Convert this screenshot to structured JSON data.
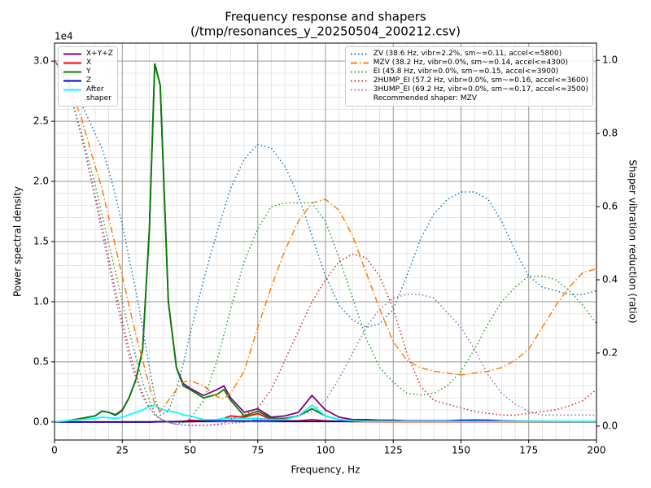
{
  "chart_data": {
    "type": "line",
    "title": "Frequency response and shapers",
    "subtitle": "(/tmp/resonances_y_20250504_200212.csv)",
    "x_label": "Frequency, Hz",
    "y_label": "Power spectral density",
    "y2_label": "Shaper vibration reduction (ratio)",
    "y_offset_label": "1e4",
    "recommendation": "Recommended shaper: MZV",
    "grid": true,
    "minor_grid": true,
    "legend_loc": "upper left",
    "y2_legend_loc": "upper right",
    "xlim": [
      0,
      200
    ],
    "xticks": [
      0,
      25,
      50,
      75,
      100,
      125,
      150,
      175,
      200
    ],
    "ylim": [
      -1500,
      31500
    ],
    "yticks": [
      {
        "value": 0,
        "label": "0.0"
      },
      {
        "value": 5000,
        "label": "0.5"
      },
      {
        "value": 10000,
        "label": "1.0"
      },
      {
        "value": 15000,
        "label": "1.5"
      },
      {
        "value": 20000,
        "label": "2.0"
      },
      {
        "value": 25000,
        "label": "2.5"
      },
      {
        "value": 30000,
        "label": "3.0"
      }
    ],
    "y2lim": [
      -0.038,
      1.047
    ],
    "y2ticks": [
      {
        "value": 0,
        "label": "0.0"
      },
      {
        "value": 0.2,
        "label": "0.2"
      },
      {
        "value": 0.4,
        "label": "0.4"
      },
      {
        "value": 0.6,
        "label": "0.6"
      },
      {
        "value": 0.8,
        "label": "0.8"
      },
      {
        "value": 1,
        "label": "1.0"
      }
    ],
    "x": [
      0,
      5,
      10,
      15,
      17.5,
      20,
      22.5,
      25,
      27.5,
      30,
      32.5,
      35,
      37,
      39,
      42,
      45,
      47.5,
      50,
      55,
      60,
      62.5,
      65,
      70,
      75,
      80,
      85,
      90,
      95,
      100,
      105,
      110,
      115,
      120,
      125,
      130,
      135,
      140,
      145,
      150,
      155,
      160,
      165,
      170,
      175,
      180,
      185,
      190,
      195,
      200
    ],
    "series": [
      {
        "name": "X+Y+Z",
        "color": "#800080",
        "linestyle": "solid",
        "axis": "y",
        "values": [
          0,
          100,
          300,
          500,
          900,
          800,
          600,
          1000,
          2000,
          3500,
          6000,
          16000,
          29800,
          28000,
          10000,
          4500,
          3200,
          2800,
          2200,
          2700,
          3000,
          2000,
          800,
          1100,
          400,
          500,
          800,
          2200,
          1000,
          400,
          200,
          200,
          150,
          150,
          100,
          100,
          100,
          100,
          150,
          150,
          150,
          100,
          80,
          50,
          50,
          40,
          30,
          30,
          30
        ]
      },
      {
        "name": "X",
        "color": "#ff0000",
        "linestyle": "solid",
        "axis": "y",
        "values": [
          0,
          0,
          0,
          0,
          0,
          0,
          0,
          0,
          0,
          0,
          0,
          0,
          10,
          20,
          30,
          40,
          60,
          150,
          100,
          200,
          300,
          500,
          400,
          700,
          200,
          100,
          100,
          200,
          100,
          50,
          30,
          30,
          20,
          20,
          20,
          20,
          20,
          20,
          20,
          20,
          20,
          20,
          20,
          20,
          20,
          20,
          20,
          20,
          20
        ]
      },
      {
        "name": "Y",
        "color": "#008000",
        "linestyle": "solid",
        "axis": "y",
        "values": [
          0,
          100,
          300,
          500,
          900,
          800,
          550,
          950,
          2000,
          3500,
          6000,
          16000,
          29800,
          28000,
          10000,
          4500,
          3000,
          2700,
          2000,
          2300,
          2700,
          1800,
          500,
          900,
          300,
          300,
          500,
          1100,
          500,
          200,
          100,
          100,
          100,
          80,
          60,
          50,
          50,
          50,
          60,
          60,
          60,
          50,
          40,
          30,
          30,
          30,
          20,
          20,
          20
        ]
      },
      {
        "name": "Z",
        "color": "#0000cd",
        "linestyle": "solid",
        "axis": "y",
        "values": [
          0,
          0,
          0,
          0,
          0,
          0,
          0,
          0,
          0,
          0,
          0,
          0,
          10,
          20,
          20,
          20,
          20,
          30,
          50,
          80,
          100,
          100,
          80,
          100,
          80,
          50,
          50,
          50,
          50,
          50,
          50,
          50,
          50,
          50,
          50,
          50,
          60,
          80,
          120,
          150,
          120,
          80,
          60,
          50,
          40,
          30,
          30,
          30,
          30
        ]
      },
      {
        "name": "After\nshaper",
        "color": "#00ffff",
        "linestyle": "solid",
        "axis": "y",
        "values": [
          0,
          100,
          200,
          300,
          400,
          350,
          300,
          400,
          600,
          800,
          1000,
          1300,
          1400,
          1100,
          900,
          800,
          600,
          500,
          200,
          200,
          300,
          300,
          300,
          300,
          200,
          200,
          500,
          1400,
          500,
          200,
          100,
          50,
          50,
          50,
          50,
          50,
          50,
          50,
          50,
          50,
          50,
          50,
          50,
          50,
          50,
          50,
          50,
          50,
          50
        ]
      },
      {
        "name": "ZV (38.6 Hz, vibr=2.2%, sm~=0.11, accel<=5800)",
        "color": "#1f77b4",
        "linestyle": "dotted",
        "axis": "y2",
        "values": [
          1.0,
          0.95,
          0.88,
          0.8,
          0.76,
          0.7,
          0.63,
          0.55,
          0.46,
          0.37,
          0.27,
          0.16,
          0.08,
          0.03,
          0.04,
          0.1,
          0.17,
          0.25,
          0.4,
          0.53,
          0.59,
          0.65,
          0.73,
          0.77,
          0.76,
          0.71,
          0.63,
          0.52,
          0.41,
          0.33,
          0.29,
          0.27,
          0.28,
          0.32,
          0.41,
          0.51,
          0.58,
          0.62,
          0.64,
          0.64,
          0.62,
          0.56,
          0.48,
          0.41,
          0.38,
          0.37,
          0.36,
          0.36,
          0.37
        ]
      },
      {
        "name": "MZV (38.2 Hz, vibr=0.0%, sm~=0.14, accel<=4300)",
        "color": "#ff7f0e",
        "linestyle": "dashdot",
        "axis": "y2",
        "values": [
          1.0,
          0.94,
          0.84,
          0.71,
          0.65,
          0.57,
          0.49,
          0.41,
          0.33,
          0.25,
          0.18,
          0.11,
          0.06,
          0.04,
          0.07,
          0.1,
          0.12,
          0.125,
          0.11,
          0.08,
          0.075,
          0.09,
          0.15,
          0.27,
          0.38,
          0.48,
          0.56,
          0.61,
          0.62,
          0.59,
          0.52,
          0.42,
          0.32,
          0.23,
          0.18,
          0.16,
          0.15,
          0.145,
          0.14,
          0.145,
          0.15,
          0.16,
          0.18,
          0.21,
          0.27,
          0.33,
          0.38,
          0.42,
          0.43
        ]
      },
      {
        "name": "EI (45.8 Hz, vibr=0.0%, sm~=0.15, accel<=3900)",
        "color": "#2ca02c",
        "linestyle": "dotted",
        "axis": "y2",
        "values": [
          1.0,
          0.93,
          0.8,
          0.66,
          0.58,
          0.5,
          0.42,
          0.34,
          0.26,
          0.19,
          0.12,
          0.07,
          0.035,
          0.02,
          0.01,
          0.005,
          0.01,
          0.02,
          0.07,
          0.18,
          0.25,
          0.32,
          0.45,
          0.54,
          0.6,
          0.61,
          0.61,
          0.61,
          0.56,
          0.46,
          0.35,
          0.24,
          0.16,
          0.12,
          0.09,
          0.085,
          0.09,
          0.11,
          0.15,
          0.21,
          0.28,
          0.34,
          0.38,
          0.41,
          0.41,
          0.4,
          0.37,
          0.33,
          0.28
        ]
      },
      {
        "name": "2HUMP_EI (57.2 Hz, vibr=0.0%, sm~=0.16, accel<=3600)",
        "color": "#d62728",
        "linestyle": "dotted",
        "axis": "y2",
        "values": [
          1.0,
          0.93,
          0.79,
          0.63,
          0.55,
          0.46,
          0.37,
          0.29,
          0.21,
          0.14,
          0.09,
          0.05,
          0.03,
          0.02,
          0.01,
          0.005,
          0.003,
          0.002,
          0.002,
          0.005,
          0.008,
          0.02,
          0.03,
          0.05,
          0.1,
          0.18,
          0.26,
          0.34,
          0.4,
          0.45,
          0.47,
          0.46,
          0.41,
          0.32,
          0.2,
          0.11,
          0.07,
          0.06,
          0.05,
          0.04,
          0.035,
          0.03,
          0.03,
          0.035,
          0.04,
          0.045,
          0.055,
          0.07,
          0.1
        ]
      },
      {
        "name": "3HUMP_EI (69.2 Hz, vibr=0.0%, sm~=0.17, accel<=3500)",
        "color": "#9467bd",
        "linestyle": "dotted",
        "axis": "y2",
        "values": [
          1.0,
          0.93,
          0.79,
          0.62,
          0.53,
          0.44,
          0.35,
          0.27,
          0.19,
          0.13,
          0.08,
          0.05,
          0.03,
          0.02,
          0.01,
          0.005,
          0.003,
          0.002,
          0.002,
          0.003,
          0.005,
          0.008,
          0.01,
          0.02,
          0.02,
          0.02,
          0.03,
          0.04,
          0.07,
          0.13,
          0.2,
          0.27,
          0.32,
          0.35,
          0.36,
          0.36,
          0.35,
          0.31,
          0.27,
          0.21,
          0.14,
          0.09,
          0.06,
          0.04,
          0.03,
          0.03,
          0.03,
          0.03,
          0.03
        ]
      }
    ]
  }
}
